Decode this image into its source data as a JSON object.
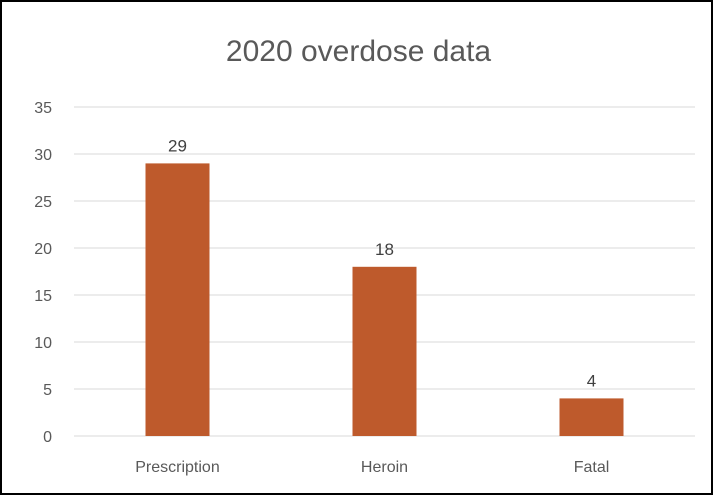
{
  "chart_data": {
    "type": "bar",
    "title": "2020 overdose data",
    "categories": [
      "Prescription",
      "Heroin",
      "Fatal"
    ],
    "values": [
      29,
      18,
      4
    ],
    "xlabel": "",
    "ylabel": "",
    "ylim": [
      0,
      35
    ],
    "yticks": [
      "0",
      "5",
      "10",
      "15",
      "20",
      "25",
      "30",
      "35"
    ],
    "data_labels": [
      "29",
      "18",
      "4"
    ],
    "grid": true,
    "legend": "none",
    "bar_color": "#BE5A2C",
    "grid_color": "#D9D9D9"
  }
}
